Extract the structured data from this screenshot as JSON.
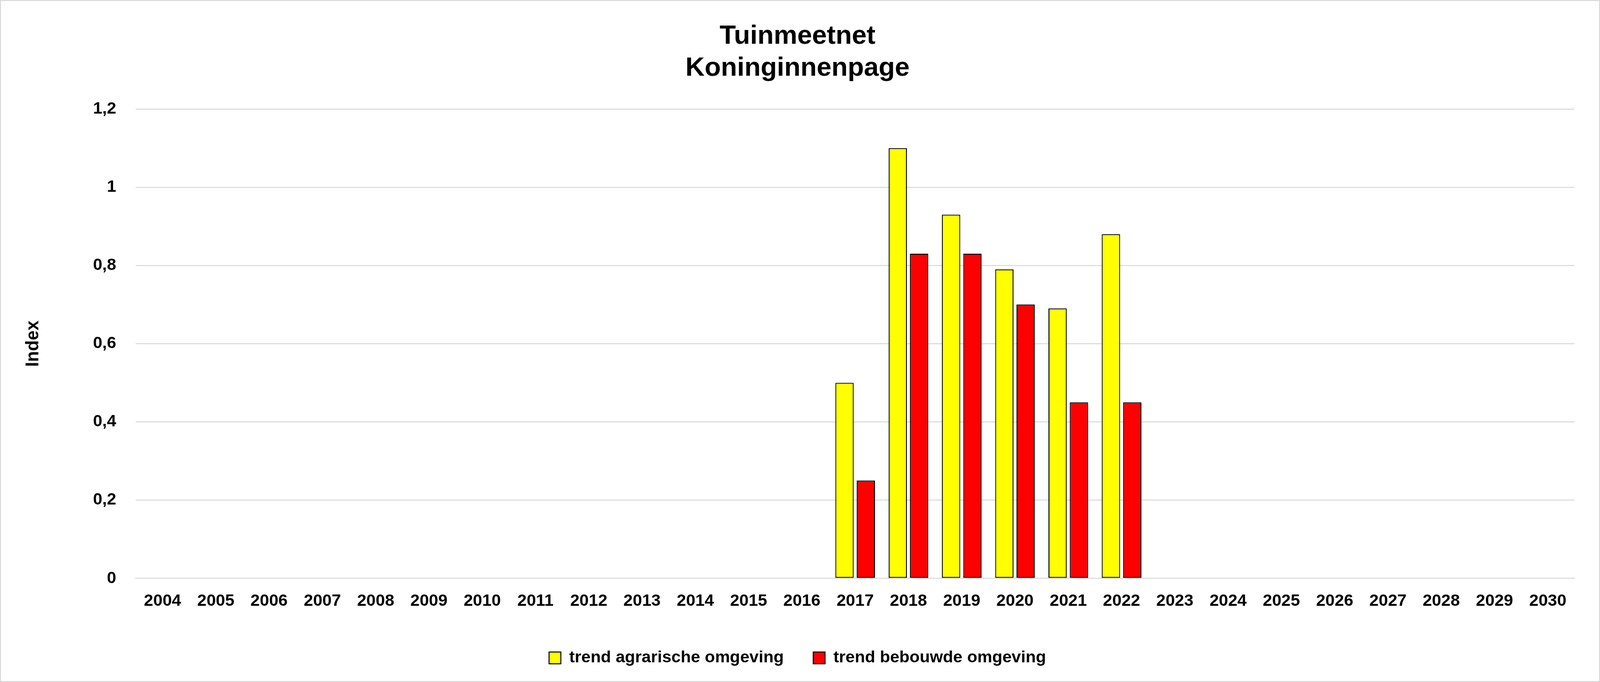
{
  "chart_data": {
    "type": "bar",
    "title": [
      "Tuinmeetnet",
      "Koninginnenpage"
    ],
    "y_label": "Index",
    "categories": [
      "2004",
      "2005",
      "2006",
      "2007",
      "2008",
      "2009",
      "2010",
      "2011",
      "2012",
      "2013",
      "2014",
      "2015",
      "2016",
      "2017",
      "2018",
      "2019",
      "2020",
      "2021",
      "2022",
      "2023",
      "2024",
      "2025",
      "2026",
      "2027",
      "2028",
      "2029",
      "2030"
    ],
    "series": [
      {
        "name": "trend agrarische omgeving",
        "color": "#ffff00",
        "values": [
          null,
          null,
          null,
          null,
          null,
          null,
          null,
          null,
          null,
          null,
          null,
          null,
          null,
          0.5,
          1.1,
          0.93,
          0.79,
          0.69,
          0.88,
          null,
          null,
          null,
          null,
          null,
          null,
          null,
          null
        ]
      },
      {
        "name": "trend bebouwde omgeving",
        "color": "#ff0000",
        "values": [
          null,
          null,
          null,
          null,
          null,
          null,
          null,
          null,
          null,
          null,
          null,
          null,
          null,
          0.25,
          0.83,
          0.83,
          0.7,
          0.45,
          0.45,
          null,
          null,
          null,
          null,
          null,
          null,
          null,
          null
        ]
      }
    ],
    "ylim": [
      0,
      1.2
    ],
    "yticks": [
      0,
      {
        "value": 0.2,
        "label": "0,2"
      },
      {
        "value": 0.4,
        "label": "0,4"
      },
      {
        "value": 0.6,
        "label": "0,6"
      },
      {
        "value": 0.8,
        "label": "0,8"
      },
      1,
      {
        "value": 1.2,
        "label": "1,2"
      }
    ],
    "grid": true,
    "legend": "bottom"
  }
}
